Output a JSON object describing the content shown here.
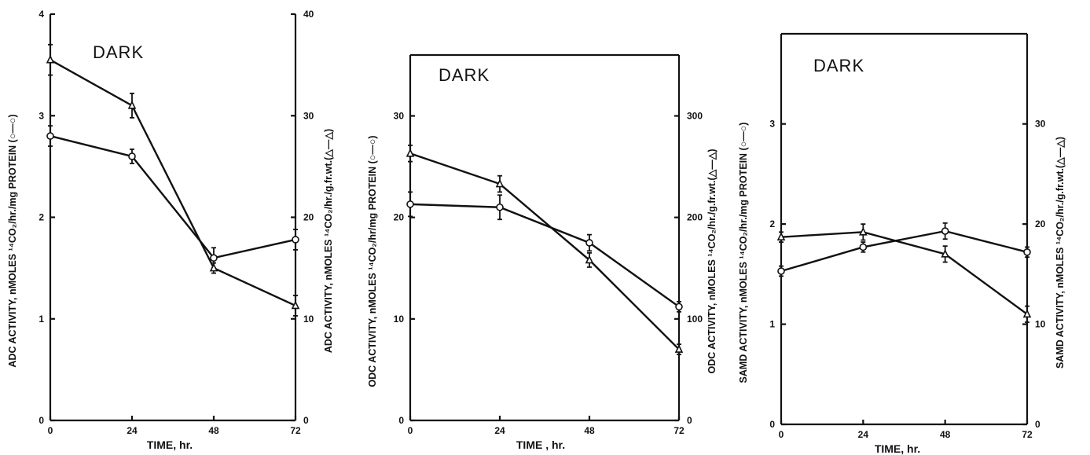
{
  "chart_data": [
    {
      "type": "line",
      "panel_label": "DARK",
      "xlabel": "TIME, hr.",
      "ylabel_left": "ADC ACTIVITY, nMOLES ¹⁴CO₂/hr./mg PROTEIN (○—○)",
      "ylabel_right": "ADC ACTIVITY, nMOLES ¹⁴CO₂/hr./g.fr.wt.(△—△)",
      "x_ticks": [
        "0",
        "24",
        "48",
        "72"
      ],
      "y_left_ticks": [
        "0",
        "1",
        "2",
        "3",
        "4"
      ],
      "y_right_ticks": [
        "0",
        "10",
        "20",
        "30",
        "40"
      ],
      "xlim": [
        0,
        72
      ],
      "ylim_left": [
        0,
        4
      ],
      "ylim_right": [
        0,
        40
      ],
      "series": [
        {
          "marker": "circle",
          "axis": "left",
          "x": [
            0,
            24,
            48,
            72
          ],
          "y": [
            2.8,
            2.6,
            1.6,
            1.78
          ],
          "err": [
            0.1,
            0.07,
            0.1,
            0.1
          ]
        },
        {
          "marker": "triangle",
          "axis": "right",
          "x": [
            0,
            24,
            48,
            72
          ],
          "y": [
            35.5,
            31.0,
            15.0,
            11.3
          ],
          "err": [
            1.5,
            1.2,
            0.5,
            1.0
          ]
        }
      ]
    },
    {
      "type": "line",
      "panel_label": "DARK",
      "xlabel": "TIME , hr.",
      "ylabel_left": "ODC ACTIVITY, nMOLES ¹⁴CO₂/hr/mg PROTEIN (○—○)",
      "ylabel_right": "ODC ACTIVITY, nMOLES ¹⁴CO₂/hr./g.fr.wt.(△—△)",
      "x_ticks": [
        "0",
        "24",
        "48",
        "72"
      ],
      "y_left_ticks": [
        "0",
        "10",
        "20",
        "30"
      ],
      "y_right_ticks": [
        "0",
        "100",
        "200",
        "300"
      ],
      "xlim": [
        0,
        72
      ],
      "ylim_left": [
        0,
        36
      ],
      "ylim_right": [
        0,
        360
      ],
      "series": [
        {
          "marker": "circle",
          "axis": "left",
          "x": [
            0,
            24,
            48,
            72
          ],
          "y": [
            21.3,
            21.0,
            17.5,
            11.2
          ],
          "err": [
            1.2,
            1.2,
            0.8,
            0.5
          ]
        },
        {
          "marker": "triangle",
          "axis": "right",
          "x": [
            0,
            24,
            48,
            72
          ],
          "y": [
            263,
            233,
            158,
            70
          ],
          "err": [
            8,
            8,
            7,
            5
          ]
        }
      ]
    },
    {
      "type": "line",
      "panel_label": "DARK",
      "xlabel": "TIME, hr.",
      "ylabel_left": "SAMD ACTIVITY, nMOLES ¹⁴CO₂/hr./mg PROTEIN (○—○)",
      "ylabel_right": "SAMD ACTIVITY, nMOLES ¹⁴CO₂/hr./g.fr.wt.(△—△)",
      "x_ticks": [
        "0",
        "24",
        "48",
        "72"
      ],
      "y_left_ticks": [
        "0",
        "1",
        "2",
        "3"
      ],
      "y_right_ticks": [
        "0",
        "10",
        "20",
        "30"
      ],
      "xlim": [
        0,
        72
      ],
      "ylim_left": [
        0,
        3.9
      ],
      "ylim_right": [
        0,
        39
      ],
      "series": [
        {
          "marker": "circle",
          "axis": "left",
          "x": [
            0,
            24,
            48,
            72
          ],
          "y": [
            1.53,
            1.77,
            1.93,
            1.72
          ],
          "err": [
            0.05,
            0.05,
            0.08,
            0.05
          ]
        },
        {
          "marker": "triangle",
          "axis": "right",
          "x": [
            0,
            24,
            48,
            72
          ],
          "y": [
            18.7,
            19.2,
            17.0,
            11.0
          ],
          "err": [
            0.5,
            0.8,
            0.8,
            0.8
          ]
        }
      ]
    }
  ]
}
